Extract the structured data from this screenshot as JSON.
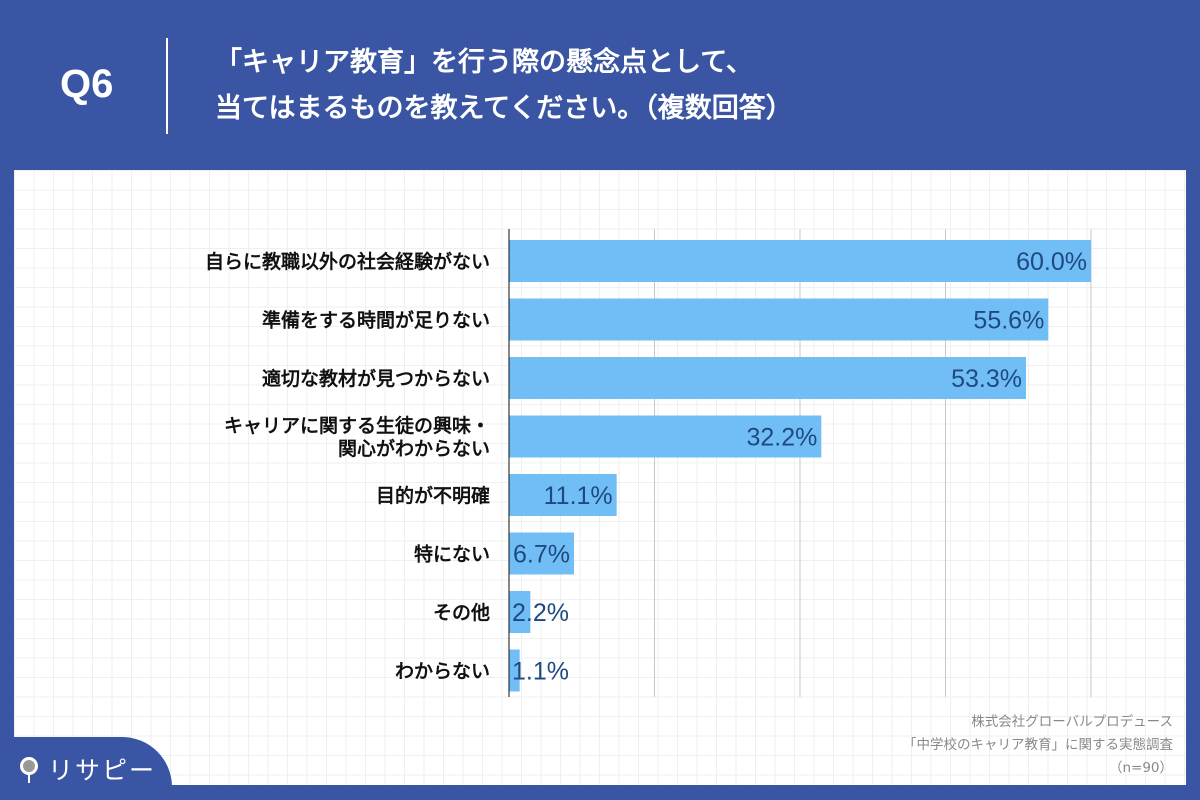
{
  "header": {
    "question": "Q6",
    "title_line1": "「キャリア教育」を行う際の懸念点として、",
    "title_line2": "当てはまるものを教えてください。（複数回答）"
  },
  "source": {
    "line1": "株式会社グローバルプロデュース",
    "line2": "「中学校のキャリア教育」に関する実態調査",
    "line3": "（n=90）"
  },
  "logo": {
    "text": "リサピー"
  },
  "colors": {
    "bar": "#71bef7",
    "header": "#3a55a3",
    "value_text": "#1f4a80"
  },
  "chart_data": {
    "type": "bar",
    "orientation": "horizontal",
    "categories": [
      [
        "自らに教職以外の社会経験がない"
      ],
      [
        "準備をする時間が足りない"
      ],
      [
        "適切な教材が見つからない"
      ],
      [
        "キャリアに関する生徒の興味・",
        "関心がわからない"
      ],
      [
        "目的が不明確"
      ],
      [
        "特にない"
      ],
      [
        "その他"
      ],
      [
        "わからない"
      ]
    ],
    "values": [
      60.0,
      55.6,
      53.3,
      32.2,
      11.1,
      6.7,
      2.2,
      1.1
    ],
    "labels": [
      "60.0%",
      "55.6%",
      "53.3%",
      "32.2%",
      "11.1%",
      "6.7%",
      "2.2%",
      "1.1%"
    ],
    "xlim": [
      0,
      60
    ],
    "grid_step": 15,
    "grid": true,
    "unit": "%"
  }
}
